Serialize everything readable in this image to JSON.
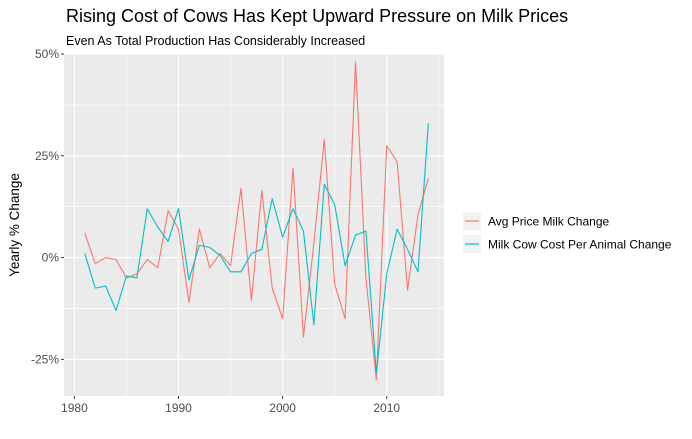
{
  "chart_data": {
    "type": "line",
    "title": "Rising Cost of Cows Has Kept Upward Pressure on Milk Prices",
    "subtitle": "Even As Total Production Has Considerably Increased",
    "xlabel": "",
    "ylabel": "Yearly % Change",
    "xlim": [
      1979,
      2015.5
    ],
    "ylim": [
      -0.34,
      0.5
    ],
    "x_ticks": [
      1980,
      1990,
      2000,
      2010
    ],
    "x_tick_labels": [
      "1980",
      "1990",
      "2000",
      "2010"
    ],
    "y_ticks": [
      -0.25,
      0,
      0.25,
      0.5
    ],
    "y_tick_labels": [
      "-25%",
      "0%",
      "25%",
      "50%"
    ],
    "grid": true,
    "legend_position": "right",
    "x": [
      1981,
      1982,
      1983,
      1984,
      1985,
      1986,
      1987,
      1988,
      1989,
      1990,
      1991,
      1992,
      1993,
      1994,
      1995,
      1996,
      1997,
      1998,
      1999,
      2000,
      2001,
      2002,
      2003,
      2004,
      2005,
      2006,
      2007,
      2008,
      2009,
      2010,
      2011,
      2012,
      2013,
      2014
    ],
    "series": [
      {
        "name": "Avg Price Milk Change",
        "color": "#F8766D",
        "values": [
          0.06,
          -0.015,
          0.0,
          -0.005,
          -0.05,
          -0.04,
          -0.005,
          -0.025,
          0.115,
          0.07,
          -0.11,
          0.07,
          -0.025,
          0.01,
          -0.02,
          0.17,
          -0.105,
          0.165,
          -0.075,
          -0.15,
          0.22,
          -0.195,
          0.035,
          0.29,
          -0.065,
          -0.15,
          0.48,
          -0.05,
          -0.3,
          0.275,
          0.235,
          -0.08,
          0.105,
          0.195
        ]
      },
      {
        "name": "Milk Cow Cost Per Animal Change",
        "color": "#00BFC4",
        "values": [
          0.01,
          -0.075,
          -0.07,
          -0.13,
          -0.045,
          -0.05,
          0.12,
          0.075,
          0.04,
          0.12,
          -0.055,
          0.03,
          0.025,
          0.005,
          -0.035,
          -0.035,
          0.01,
          0.02,
          0.145,
          0.05,
          0.12,
          0.065,
          -0.165,
          0.18,
          0.13,
          -0.02,
          0.055,
          0.065,
          -0.285,
          -0.04,
          0.07,
          0.02,
          -0.035,
          0.33
        ]
      }
    ]
  }
}
